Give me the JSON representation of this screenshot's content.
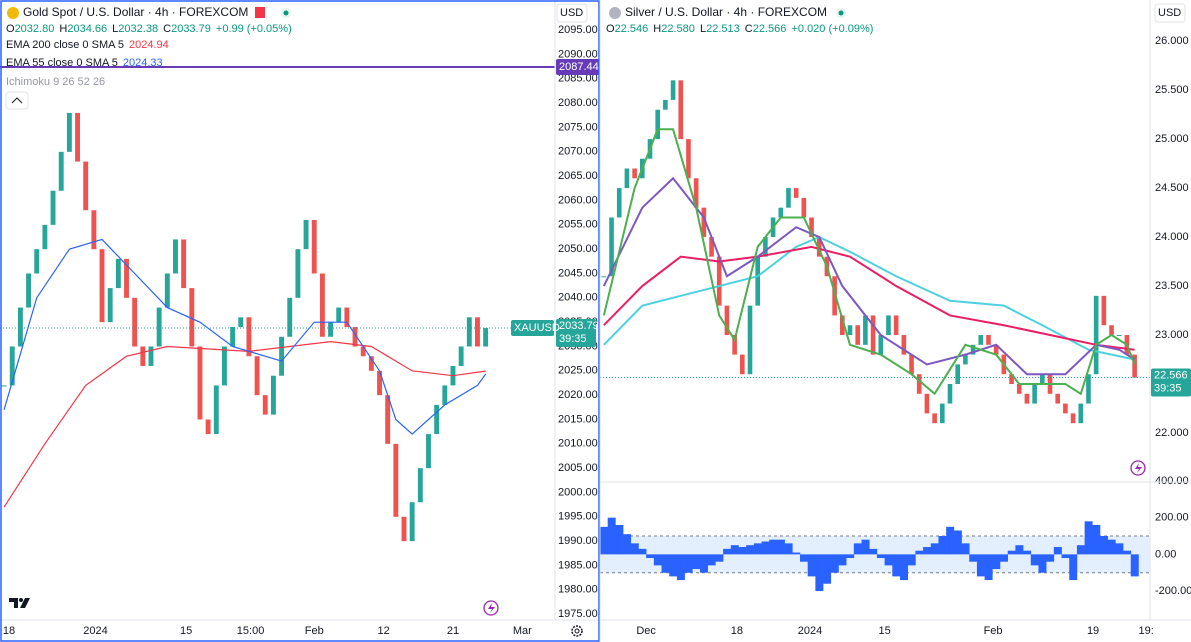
{
  "chart_data": [
    {
      "type": "candlestick",
      "title": "Gold Spot / U.S. Dollar · 4h · FOREXCOM",
      "currency": "USD",
      "symbol": "XAUUSD",
      "countdown": "39:35",
      "ohlc": [
        {
          "label": "O",
          "value": "2032.80"
        },
        {
          "label": "H",
          "value": "2034.66"
        },
        {
          "label": "L",
          "value": "2032.38"
        },
        {
          "label": "C",
          "value": "2033.79"
        }
      ],
      "change": "+0.99 (+0.05%)",
      "hidden_indicator": "Ichimoku 9 26 52 26",
      "up_color": "#26a69a",
      "down_color": "#ef5350",
      "values": [
        2022,
        2030,
        2038,
        2045,
        2050,
        2055,
        2062,
        2070,
        2078,
        2068,
        2058,
        2050,
        2035,
        2042,
        2048,
        2040,
        2030,
        2026,
        2030,
        2038,
        2045,
        2052,
        2042,
        2030,
        2015,
        2012,
        2022,
        2030,
        2034,
        2036,
        2028,
        2020,
        2016,
        2024,
        2032,
        2040,
        2050,
        2056,
        2045,
        2032,
        2035,
        2038,
        2034,
        2030,
        2028,
        2025,
        2020,
        2010,
        1995,
        1990,
        1998,
        2005,
        2012,
        2018,
        2022,
        2026,
        2030,
        2036,
        2030,
        2033.79
      ],
      "series": [
        {
          "name": "EMA 200 close 0 SMA 5",
          "color": "#f23645",
          "x": [
            0,
            5,
            10,
            15,
            20,
            30,
            40,
            45,
            50,
            55,
            59
          ],
          "values": [
            1997,
            2010,
            2022,
            2028,
            2030,
            2029,
            2031,
            2030,
            2025,
            2024,
            2024.94
          ]
        },
        {
          "name": "EMA 55 close 0 SMA 5",
          "color": "#2962ff",
          "x": [
            0,
            4,
            8,
            12,
            16,
            20,
            24,
            28,
            34,
            38,
            42,
            46,
            48,
            50,
            54,
            58,
            59
          ],
          "values": [
            2017,
            2040,
            2050,
            2052,
            2045,
            2038,
            2035,
            2030,
            2027,
            2035,
            2035,
            2025,
            2015,
            2012,
            2018,
            2022,
            2024.33
          ]
        }
      ],
      "hlines": [
        {
          "value": 2087.44,
          "color": "#673ab7"
        }
      ],
      "xlim": [
        -0.5,
        67.5
      ],
      "xticks": [
        {
          "value": 0.6,
          "label": "18"
        },
        {
          "value": 11.2,
          "label": "2024"
        },
        {
          "value": 22.3,
          "label": "15"
        },
        {
          "value": 30.2,
          "label": "15:00"
        },
        {
          "value": 38,
          "label": "Feb"
        },
        {
          "value": 46.5,
          "label": "12"
        },
        {
          "value": 55,
          "label": "21"
        },
        {
          "value": 63.5,
          "label": "Mar"
        }
      ],
      "ylim": [
        1973.8,
        2101.2
      ],
      "yticks": [
        {
          "value": 1975,
          "label": "1975.00"
        },
        {
          "value": 1980,
          "label": "1980.00"
        },
        {
          "value": 1985,
          "label": "1985.00"
        },
        {
          "value": 1990,
          "label": "1990.00"
        },
        {
          "value": 1995,
          "label": "1995.00"
        },
        {
          "value": 2000,
          "label": "2000.00"
        },
        {
          "value": 2005,
          "label": "2005.00"
        },
        {
          "value": 2010,
          "label": "2010.00"
        },
        {
          "value": 2015,
          "label": "2015.00"
        },
        {
          "value": 2020,
          "label": "2020.00"
        },
        {
          "value": 2025,
          "label": "2025.00"
        },
        {
          "value": 2030,
          "label": "2030.00"
        },
        {
          "value": 2035,
          "label": "2035.00"
        },
        {
          "value": 2040,
          "label": "2040.00"
        },
        {
          "value": 2045,
          "label": "2045.00"
        },
        {
          "value": 2050,
          "label": "2050.00"
        },
        {
          "value": 2055,
          "label": "2055.00"
        },
        {
          "value": 2060,
          "label": "2060.00"
        },
        {
          "value": 2065,
          "label": "2065.00"
        },
        {
          "value": 2070,
          "label": "2070.00"
        },
        {
          "value": 2075,
          "label": "2075.00"
        },
        {
          "value": 2080,
          "label": "2080.00"
        },
        {
          "value": 2085,
          "label": "2085.00"
        },
        {
          "value": 2090,
          "label": "2090.00"
        },
        {
          "value": 2095,
          "label": "2095.00"
        }
      ]
    },
    {
      "type": "candlestick",
      "title": "Silver / U.S. Dollar · 4h · FOREXCOM",
      "currency": "USD",
      "countdown": "39:35",
      "ohlc": [
        {
          "label": "O",
          "value": "22.546"
        },
        {
          "label": "H",
          "value": "22.580"
        },
        {
          "label": "L",
          "value": "22.513"
        },
        {
          "label": "C",
          "value": "22.566"
        }
      ],
      "change": "+0.020 (+0.09%)",
      "up_color": "#26a69a",
      "down_color": "#ef5350",
      "values": [
        23.6,
        24.2,
        24.5,
        24.7,
        24.6,
        24.8,
        25.0,
        25.3,
        25.4,
        25.6,
        25.0,
        24.6,
        24.3,
        24.0,
        23.8,
        23.3,
        23.0,
        22.8,
        22.6,
        23.3,
        23.8,
        24.0,
        24.2,
        24.3,
        24.5,
        24.4,
        24.2,
        24.0,
        23.8,
        23.6,
        23.2,
        23.0,
        23.1,
        22.9,
        23.2,
        22.8,
        23.0,
        23.2,
        23.0,
        22.8,
        22.6,
        22.4,
        22.2,
        22.1,
        22.3,
        22.5,
        22.7,
        22.8,
        22.9,
        23.0,
        22.9,
        22.8,
        22.6,
        22.5,
        22.4,
        22.3,
        22.5,
        22.6,
        22.4,
        22.3,
        22.2,
        22.1,
        22.3,
        22.6,
        23.4,
        23.1,
        23.0,
        23.0,
        22.8,
        22.566
      ],
      "series": [
        {
          "color": "#4dd0e1",
          "x": [
            0,
            5,
            10,
            15,
            20,
            25,
            28,
            32,
            38,
            45,
            52,
            57,
            63,
            69
          ],
          "values": [
            22.9,
            23.3,
            23.4,
            23.5,
            23.6,
            23.9,
            24.0,
            23.85,
            23.6,
            23.35,
            23.3,
            23.1,
            22.85,
            22.75
          ]
        },
        {
          "color": "#e91e63",
          "x": [
            0,
            5,
            10,
            15,
            20,
            27,
            32,
            38,
            45,
            52,
            58,
            64,
            69
          ],
          "values": [
            23.1,
            23.5,
            23.8,
            23.75,
            23.8,
            23.9,
            23.8,
            23.5,
            23.2,
            23.1,
            23.0,
            22.9,
            22.85
          ]
        },
        {
          "color": "#7e57c2",
          "x": [
            0,
            5,
            9,
            13,
            16,
            20,
            25,
            28,
            31,
            36,
            42,
            47,
            51,
            55,
            60,
            64,
            67,
            69
          ],
          "values": [
            23.5,
            24.3,
            24.6,
            24.2,
            23.6,
            23.8,
            24.1,
            24.0,
            23.5,
            23.0,
            22.7,
            22.8,
            22.9,
            22.6,
            22.6,
            22.9,
            22.85,
            22.75
          ]
        },
        {
          "color": "#4caf50",
          "x": [
            0,
            4,
            7,
            9,
            12,
            15,
            17,
            20,
            23,
            26,
            29,
            32,
            36,
            40,
            43,
            47,
            51,
            54,
            57,
            60,
            62,
            64,
            66,
            68,
            69
          ],
          "values": [
            23.2,
            24.5,
            25.1,
            25.1,
            24.3,
            23.2,
            22.95,
            23.9,
            24.2,
            24.2,
            23.7,
            22.9,
            22.8,
            22.6,
            22.4,
            22.9,
            22.8,
            22.5,
            22.5,
            22.5,
            22.4,
            22.9,
            23.0,
            22.9,
            22.7
          ]
        }
      ],
      "xlim": [
        -0.5,
        71
      ],
      "xticks": [
        {
          "value": 5.5,
          "label": "Dec"
        },
        {
          "value": 17.3,
          "label": "18"
        },
        {
          "value": 26.8,
          "label": "2024"
        },
        {
          "value": 36.5,
          "label": "15"
        },
        {
          "value": 50.6,
          "label": "Feb"
        },
        {
          "value": 63.6,
          "label": "19"
        },
        {
          "value": 70.5,
          "label": "19:"
        }
      ],
      "ylim": [
        21.52,
        26.42
      ],
      "yticks": [
        {
          "value": 22,
          "label": "22.000"
        },
        {
          "value": 22.5,
          "label": "22.500"
        },
        {
          "value": 23,
          "label": "23.000"
        },
        {
          "value": 23.5,
          "label": "23.500"
        },
        {
          "value": 24,
          "label": "24.000"
        },
        {
          "value": 24.5,
          "label": "24.500"
        },
        {
          "value": 25,
          "label": "25.000"
        },
        {
          "value": 25.5,
          "label": "25.500"
        },
        {
          "value": 26,
          "label": "26.000"
        }
      ]
    },
    {
      "type": "histogram",
      "color": "#2962ff",
      "band": [
        -100,
        100
      ],
      "band_color": "#e3effd",
      "values": [
        150,
        200,
        160,
        110,
        60,
        30,
        -20,
        -60,
        -100,
        -120,
        -140,
        -100,
        -80,
        -100,
        -60,
        -40,
        30,
        50,
        40,
        50,
        60,
        70,
        80,
        80,
        60,
        10,
        -40,
        -120,
        -200,
        -160,
        -100,
        -60,
        -20,
        60,
        80,
        30,
        -20,
        -60,
        -120,
        -140,
        -60,
        20,
        40,
        60,
        100,
        150,
        130,
        60,
        -40,
        -120,
        -140,
        -80,
        -40,
        20,
        50,
        20,
        -60,
        -100,
        -40,
        40,
        -20,
        -140,
        50,
        180,
        160,
        100,
        80,
        60,
        20,
        -120
      ],
      "xlim": [
        -0.5,
        71
      ],
      "ylim": [
        -314,
        416
      ],
      "yticks": [
        {
          "value": -200,
          "label": "-200.00"
        },
        {
          "value": 0,
          "label": "0.00"
        },
        {
          "value": 200,
          "label": "200.00"
        },
        {
          "value": 400,
          "label": "400.00"
        }
      ]
    }
  ]
}
